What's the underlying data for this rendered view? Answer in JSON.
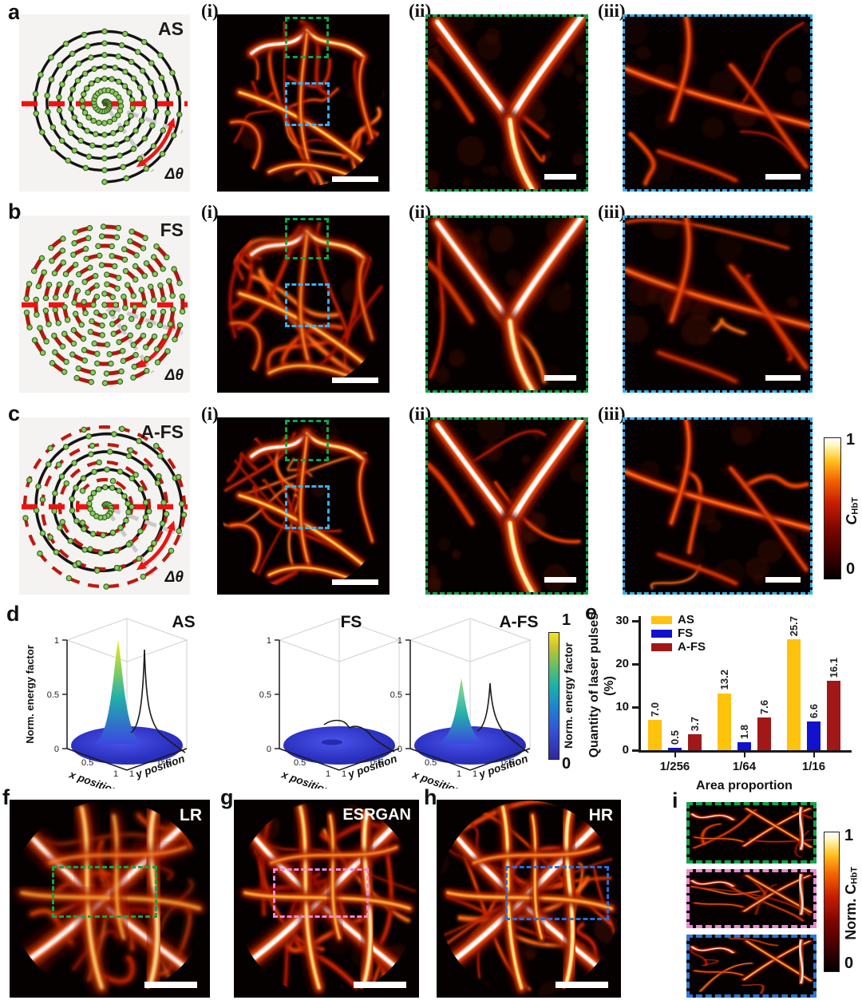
{
  "figure": {
    "rows": [
      {
        "letter": "a",
        "method": "AS",
        "angle_label": "Δθ",
        "panel_labels": [
          "(i)",
          "(ii)",
          "(iii)"
        ]
      },
      {
        "letter": "b",
        "method": "FS",
        "angle_label": "Δθ",
        "panel_labels": [
          "(i)",
          "(ii)",
          "(iii)"
        ]
      },
      {
        "letter": "c",
        "method": "A-FS",
        "angle_label": "Δθ",
        "panel_labels": [
          "(i)",
          "(ii)",
          "(iii)"
        ]
      }
    ],
    "colorbar_chbt": {
      "symbol": "C",
      "subscript": "HbT",
      "max": "1",
      "min": "0"
    },
    "panel_d": {
      "letter": "d"
    },
    "panel_e": {
      "letter": "e"
    },
    "bottom_row": {
      "panels": [
        {
          "letter": "f",
          "tag": "LR"
        },
        {
          "letter": "g",
          "tag": "ESRGAN"
        },
        {
          "letter": "h",
          "tag": "HR"
        },
        {
          "letter": "i",
          "tag": ""
        }
      ],
      "colorbar": {
        "label": "Norm. C",
        "subscript": "HbT",
        "max": "1",
        "min": "0"
      }
    },
    "colors": {
      "green_box": "#12a44a",
      "cyan_box": "#35b0ee",
      "pink_box": "#ee86d4",
      "royal_box": "#2e6bd6",
      "red_dash": "#ee1310",
      "dark_red_dash": "#b2180e",
      "dot_green": "#8cca5c"
    }
  },
  "chart_data": [
    {
      "type": "bar",
      "panel": "e",
      "title": "",
      "xlabel": "Area proportion",
      "ylabel_lines": [
        "Quantity of laser pulses",
        "(%)"
      ],
      "categories": [
        "1/256",
        "1/64",
        "1/16"
      ],
      "series": [
        {
          "name": "AS",
          "color": "#FFC30D",
          "values": [
            7.0,
            13.2,
            25.7
          ]
        },
        {
          "name": "FS",
          "color": "#1111CE",
          "values": [
            0.5,
            1.8,
            6.6
          ]
        },
        {
          "name": "A-FS",
          "color": "#A21717",
          "values": [
            3.7,
            7.6,
            16.1
          ]
        }
      ],
      "ylim": [
        0,
        30
      ],
      "yticks": [
        0,
        10,
        20,
        30
      ],
      "legend_position": "top-left",
      "value_labels_rotated": true
    },
    {
      "type": "surface",
      "panel": "d",
      "plots": [
        {
          "title": "AS",
          "peak_height": 1.0
        },
        {
          "title": "FS",
          "peak_height": 0.05
        },
        {
          "title": "A-FS",
          "peak_height": 0.65
        }
      ],
      "zlabel": "Norm. energy factor",
      "xlabel": "x position",
      "ylabel": "y position",
      "zticks": [
        "1",
        "0.5",
        "0"
      ],
      "xticks": [
        "0.5",
        "1"
      ],
      "yticks": [
        "1",
        "0.5"
      ],
      "zlim": [
        0,
        1
      ],
      "colorbar": {
        "label": "Norm. energy factor",
        "max": "1",
        "min": "0"
      }
    }
  ]
}
